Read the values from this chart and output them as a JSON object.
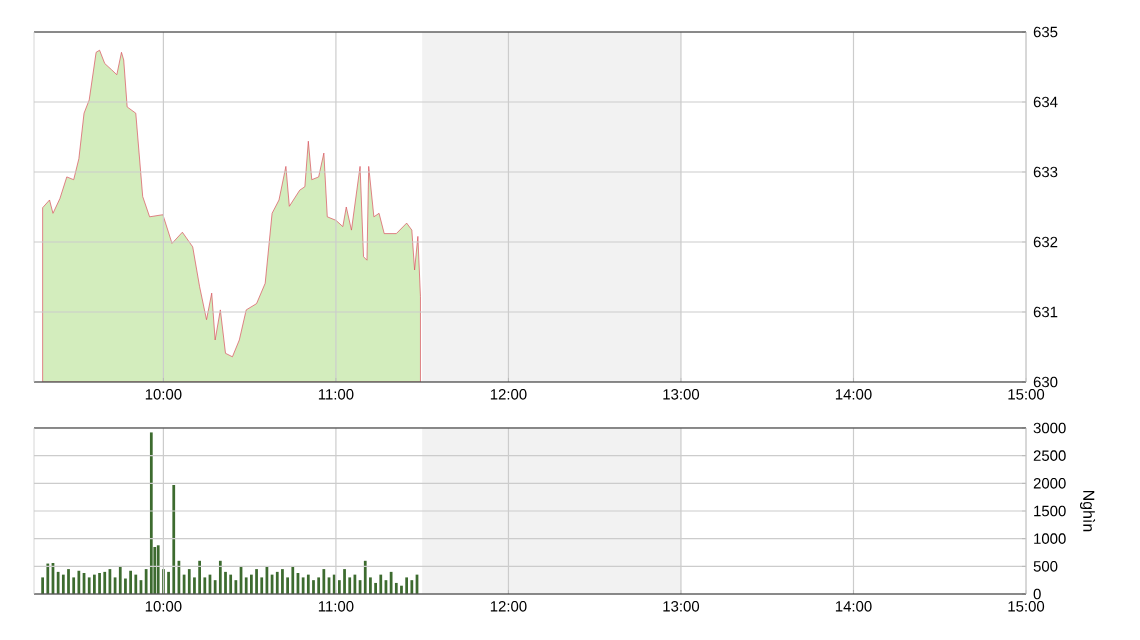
{
  "chart_data": [
    {
      "type": "area",
      "color": "#d3edbd",
      "x": [
        9.3,
        9.34,
        9.36,
        9.4,
        9.44,
        9.48,
        9.51,
        9.54,
        9.57,
        9.61,
        9.63,
        9.66,
        9.7,
        9.73,
        9.757,
        9.77,
        9.79,
        9.84,
        9.88,
        9.92,
        9.997,
        10.05,
        10.11,
        10.17,
        10.21,
        10.25,
        10.28,
        10.3,
        10.33,
        10.36,
        10.4,
        10.44,
        10.48,
        10.54,
        10.59,
        10.63,
        10.67,
        10.71,
        10.73,
        10.79,
        10.82,
        10.84,
        10.86,
        10.9,
        10.93,
        10.95,
        11.0,
        11.04,
        11.06,
        11.09,
        11.14,
        11.16,
        11.18,
        11.19,
        11.22,
        11.25,
        11.28,
        11.35,
        11.41,
        11.44,
        11.456,
        11.475,
        11.49
      ],
      "values": [
        632.49,
        632.6,
        632.41,
        632.62,
        632.93,
        632.89,
        633.19,
        633.84,
        634.03,
        634.71,
        634.74,
        634.55,
        634.46,
        634.39,
        634.71,
        634.6,
        633.93,
        633.84,
        632.65,
        632.36,
        632.39,
        631.98,
        632.14,
        631.93,
        631.36,
        630.89,
        631.27,
        630.6,
        631.03,
        630.41,
        630.36,
        630.6,
        631.03,
        631.12,
        631.41,
        632.41,
        632.6,
        633.08,
        632.51,
        632.74,
        632.79,
        633.44,
        632.89,
        632.93,
        633.27,
        632.36,
        632.31,
        632.22,
        632.5,
        632.17,
        633.08,
        631.79,
        631.74,
        633.08,
        632.36,
        632.41,
        632.12,
        632.12,
        632.27,
        632.17,
        631.6,
        632.08,
        631.22
      ],
      "xlim": [
        9.25,
        15
      ],
      "ylim": [
        630,
        635
      ],
      "yticks": [
        630,
        631,
        632,
        633,
        634,
        635
      ],
      "xticks": [
        {
          "value": 10,
          "label": "10:00"
        },
        {
          "value": 11,
          "label": "11:00"
        },
        {
          "value": 12,
          "label": "12:00"
        },
        {
          "value": 13,
          "label": "13:00"
        },
        {
          "value": 14,
          "label": "14:00"
        },
        {
          "value": 15,
          "label": "15:00"
        }
      ],
      "bands": [
        {
          "axis": "x",
          "from": 11.5,
          "to": 13,
          "color": "#f2f2f2"
        }
      ],
      "grid": true
    },
    {
      "type": "bar",
      "color": "#3d6b2f",
      "ylabel": "Nghìn",
      "x": [
        9.3,
        9.33,
        9.36,
        9.39,
        9.42,
        9.45,
        9.48,
        9.51,
        9.54,
        9.57,
        9.6,
        9.63,
        9.66,
        9.69,
        9.72,
        9.75,
        9.78,
        9.81,
        9.84,
        9.87,
        9.9,
        9.93,
        9.95,
        9.97,
        10.0,
        10.03,
        10.06,
        10.09,
        10.12,
        10.15,
        10.18,
        10.21,
        10.24,
        10.27,
        10.3,
        10.33,
        10.36,
        10.39,
        10.42,
        10.45,
        10.48,
        10.51,
        10.54,
        10.57,
        10.6,
        10.63,
        10.66,
        10.69,
        10.72,
        10.75,
        10.78,
        10.81,
        10.84,
        10.87,
        10.9,
        10.93,
        10.96,
        10.99,
        11.02,
        11.05,
        11.08,
        11.11,
        11.14,
        11.17,
        11.2,
        11.23,
        11.26,
        11.29,
        11.32,
        11.35,
        11.38,
        11.41,
        11.44,
        11.47
      ],
      "values": [
        300,
        550,
        560,
        400,
        350,
        450,
        300,
        420,
        380,
        300,
        350,
        380,
        400,
        450,
        300,
        500,
        280,
        420,
        350,
        250,
        450,
        2920,
        850,
        880,
        450,
        400,
        1970,
        600,
        350,
        450,
        300,
        600,
        300,
        350,
        250,
        600,
        400,
        350,
        250,
        500,
        300,
        350,
        450,
        300,
        500,
        350,
        400,
        450,
        300,
        500,
        380,
        300,
        350,
        250,
        300,
        450,
        300,
        350,
        250,
        450,
        300,
        350,
        250,
        600,
        300,
        200,
        350,
        250,
        400,
        200,
        150,
        300,
        250,
        350
      ],
      "xlim": [
        9.25,
        15
      ],
      "ylim": [
        0,
        3000
      ],
      "yticks": [
        0,
        500,
        1000,
        1500,
        2000,
        2500,
        3000
      ],
      "xticks": [
        {
          "value": 10,
          "label": "10:00"
        },
        {
          "value": 11,
          "label": "11:00"
        },
        {
          "value": 12,
          "label": "12:00"
        },
        {
          "value": 13,
          "label": "13:00"
        },
        {
          "value": 14,
          "label": "14:00"
        },
        {
          "value": 15,
          "label": "15:00"
        }
      ],
      "bands": [
        {
          "axis": "x",
          "from": 11.5,
          "to": 13,
          "color": "#f2f2f2"
        }
      ],
      "grid": true
    }
  ]
}
